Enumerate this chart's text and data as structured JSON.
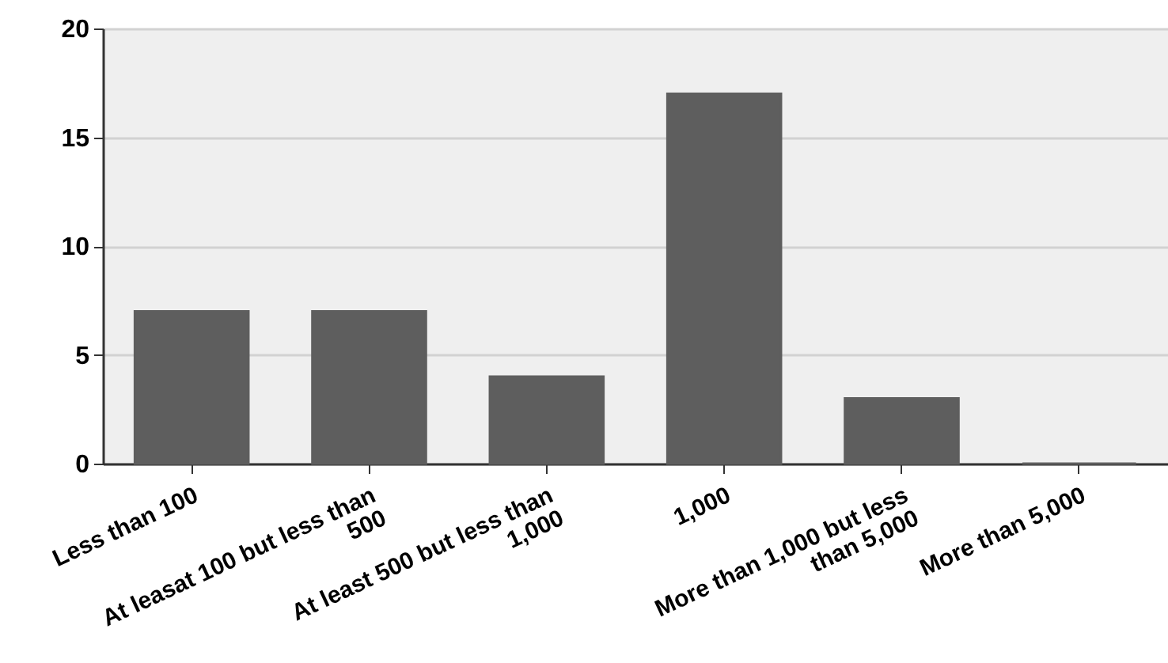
{
  "chart_data": {
    "type": "bar",
    "categories": [
      "Less than 100",
      "At leasat 100 but less than 500",
      "At least 500 but less than 1,000",
      "1,000",
      "More than 1,000 but less than 5,000",
      "More than 5,000"
    ],
    "values": [
      7,
      7,
      4,
      17,
      3,
      0
    ],
    "color": "#5e5e5e",
    "ylim": [
      0,
      20
    ],
    "yticks": [
      0,
      5,
      10,
      15,
      20
    ],
    "grid": "y"
  }
}
